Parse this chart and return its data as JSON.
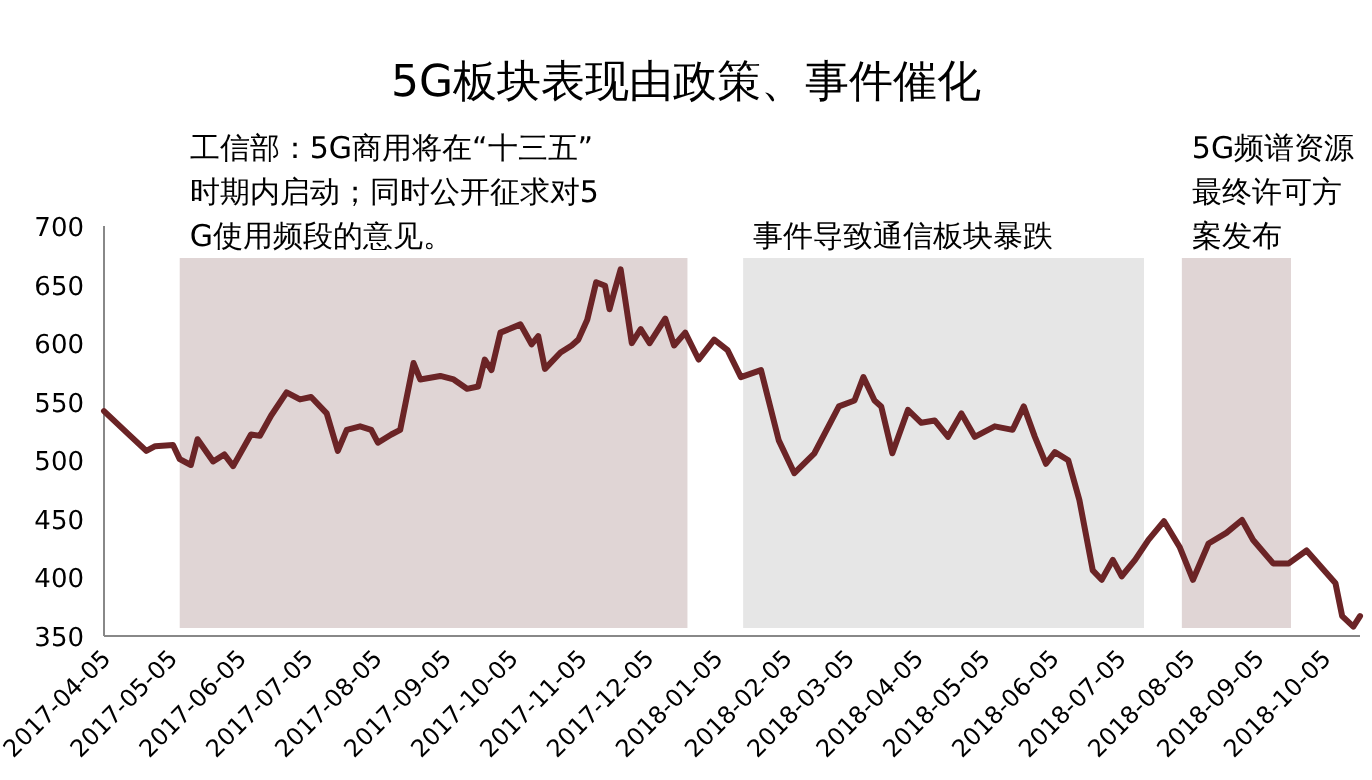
{
  "chart_data": {
    "type": "line",
    "title": "5G板块表现由政策、事件催化",
    "ylim": [
      350,
      700
    ],
    "yticks": [
      350,
      400,
      450,
      500,
      550,
      600,
      650,
      700
    ],
    "xlim": [
      "2017-04-05",
      "2018-10-21"
    ],
    "xticks": [
      "2017-04-05",
      "2017-05-05",
      "2017-06-05",
      "2017-07-05",
      "2017-08-05",
      "2017-09-05",
      "2017-10-05",
      "2017-11-05",
      "2017-12-05",
      "2018-01-05",
      "2018-02-05",
      "2018-03-05",
      "2018-04-05",
      "2018-05-05",
      "2018-06-05",
      "2018-07-05",
      "2018-08-05",
      "2018-09-05",
      "2018-10-05"
    ],
    "grid": false,
    "marker": "none",
    "line_style": "solid",
    "bands": [
      {
        "axis": "x",
        "from": "2017-05-09",
        "to": "2017-12-23",
        "label": "工信部：5G商用将在“十三五”时期内启动；同时公开征求对5G使用频段的意见。",
        "color": "#e0d5d5"
      },
      {
        "axis": "x",
        "from": "2018-01-17",
        "to": "2018-07-16",
        "label": "事件导致通信板块暴跌",
        "color": "#e6e6e6"
      },
      {
        "axis": "x",
        "from": "2018-08-02",
        "to": "2018-09-20",
        "label": "5G频谱资源最终许可方案发布",
        "color": "#e0d5d5"
      }
    ],
    "series": [
      {
        "color": "#6b2426",
        "x": [
          "2017-04-05",
          "2017-04-15",
          "2017-04-24",
          "2017-04-28",
          "2017-05-06",
          "2017-05-09",
          "2017-05-14",
          "2017-05-17",
          "2017-05-24",
          "2017-05-29",
          "2017-06-02",
          "2017-06-10",
          "2017-06-14",
          "2017-06-19",
          "2017-06-26",
          "2017-07-02",
          "2017-07-07",
          "2017-07-14",
          "2017-07-19",
          "2017-07-23",
          "2017-07-29",
          "2017-08-03",
          "2017-08-06",
          "2017-08-12",
          "2017-08-16",
          "2017-08-22",
          "2017-08-25",
          "2017-09-03",
          "2017-09-09",
          "2017-09-15",
          "2017-09-20",
          "2017-09-23",
          "2017-09-26",
          "2017-09-30",
          "2017-10-09",
          "2017-10-14",
          "2017-10-17",
          "2017-10-20",
          "2017-10-27",
          "2017-11-01",
          "2017-11-04",
          "2017-11-08",
          "2017-11-12",
          "2017-11-16",
          "2017-11-18",
          "2017-11-20",
          "2017-11-23",
          "2017-11-28",
          "2017-12-02",
          "2017-12-06",
          "2017-12-13",
          "2017-12-17",
          "2017-12-22",
          "2017-12-28",
          "2018-01-04",
          "2018-01-10",
          "2018-01-16",
          "2018-01-25",
          "2018-02-02",
          "2018-02-09",
          "2018-02-18",
          "2018-03-01",
          "2018-03-08",
          "2018-03-12",
          "2018-03-17",
          "2018-03-20",
          "2018-03-25",
          "2018-04-01",
          "2018-04-07",
          "2018-04-13",
          "2018-04-19",
          "2018-04-25",
          "2018-05-01",
          "2018-05-10",
          "2018-05-18",
          "2018-05-23",
          "2018-05-28",
          "2018-06-02",
          "2018-06-06",
          "2018-06-12",
          "2018-06-17",
          "2018-06-23",
          "2018-06-27",
          "2018-07-02",
          "2018-07-06",
          "2018-07-12",
          "2018-07-18",
          "2018-07-25",
          "2018-08-01",
          "2018-08-07",
          "2018-08-14",
          "2018-08-22",
          "2018-08-29",
          "2018-09-03",
          "2018-09-12",
          "2018-09-19",
          "2018-09-27",
          "2018-10-10",
          "2018-10-13",
          "2018-10-18",
          "2018-10-21"
        ],
        "values": [
          542,
          524,
          508,
          512,
          513,
          501,
          496,
          518,
          499,
          505,
          495,
          522,
          521,
          538,
          558,
          552,
          554,
          540,
          508,
          526,
          529,
          526,
          515,
          522,
          526,
          583,
          569,
          572,
          569,
          561,
          563,
          586,
          577,
          609,
          616,
          599,
          606,
          578,
          592,
          598,
          603,
          620,
          652,
          649,
          629,
          643,
          663,
          600,
          612,
          600,
          621,
          598,
          609,
          586,
          603,
          594,
          571,
          577,
          517,
          489,
          506,
          546,
          551,
          571,
          551,
          546,
          506,
          543,
          532,
          534,
          520,
          540,
          520,
          529,
          526,
          546,
          520,
          497,
          507,
          500,
          466,
          406,
          398,
          415,
          401,
          415,
          432,
          448,
          426,
          398,
          429,
          438,
          449,
          432,
          412,
          412,
          423,
          395,
          367,
          358,
          367
        ]
      }
    ]
  }
}
